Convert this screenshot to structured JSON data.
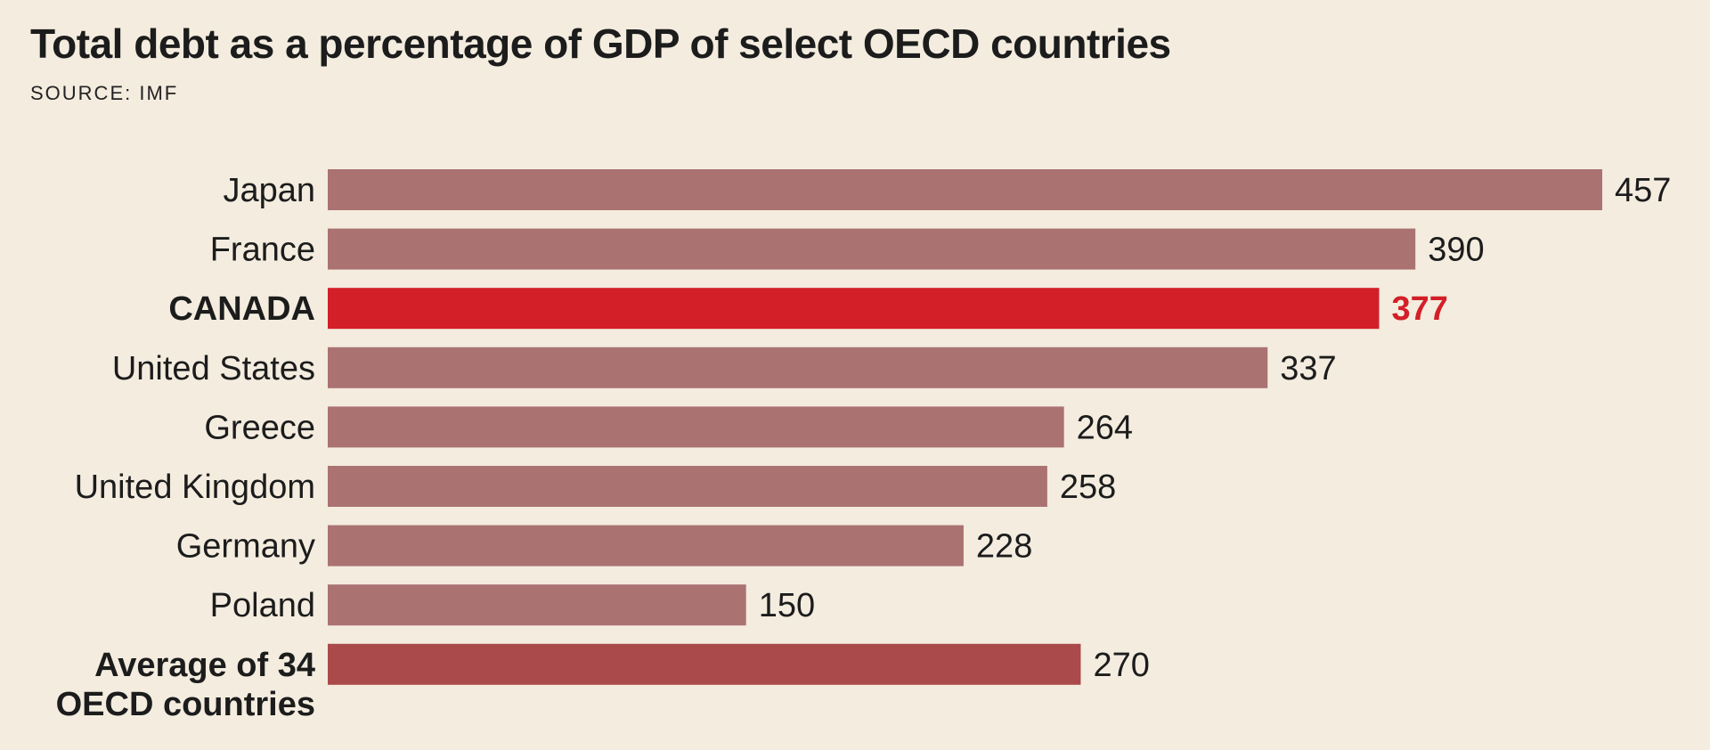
{
  "chart_data": {
    "type": "bar",
    "orientation": "horizontal",
    "title": "Total debt as a percentage of GDP of select OECD countries",
    "subtitle": "SOURCE: IMF",
    "xlabel": "",
    "ylabel": "",
    "grid": false,
    "categories": [
      "Japan",
      "France",
      "CANADA",
      "United States",
      "Greece",
      "United Kingdom",
      "Germany",
      "Poland",
      "Average of 34 OECD countries"
    ],
    "label_lines": [
      [
        "Japan"
      ],
      [
        "France"
      ],
      [
        "CANADA"
      ],
      [
        "United States"
      ],
      [
        "Greece"
      ],
      [
        "United Kingdom"
      ],
      [
        "Germany"
      ],
      [
        "Poland"
      ],
      [
        "Average of 34",
        "OECD countries"
      ]
    ],
    "values": [
      457,
      390,
      377,
      337,
      264,
      258,
      228,
      150,
      270
    ],
    "styles": [
      "normal",
      "normal",
      "highlight",
      "normal",
      "normal",
      "normal",
      "normal",
      "normal",
      "average"
    ],
    "colors": {
      "normal": "#ab7272",
      "highlight": "#d31f27",
      "average": "#ab4a4a",
      "background": "#f3ecdf"
    },
    "xlim": [
      0,
      457
    ]
  }
}
